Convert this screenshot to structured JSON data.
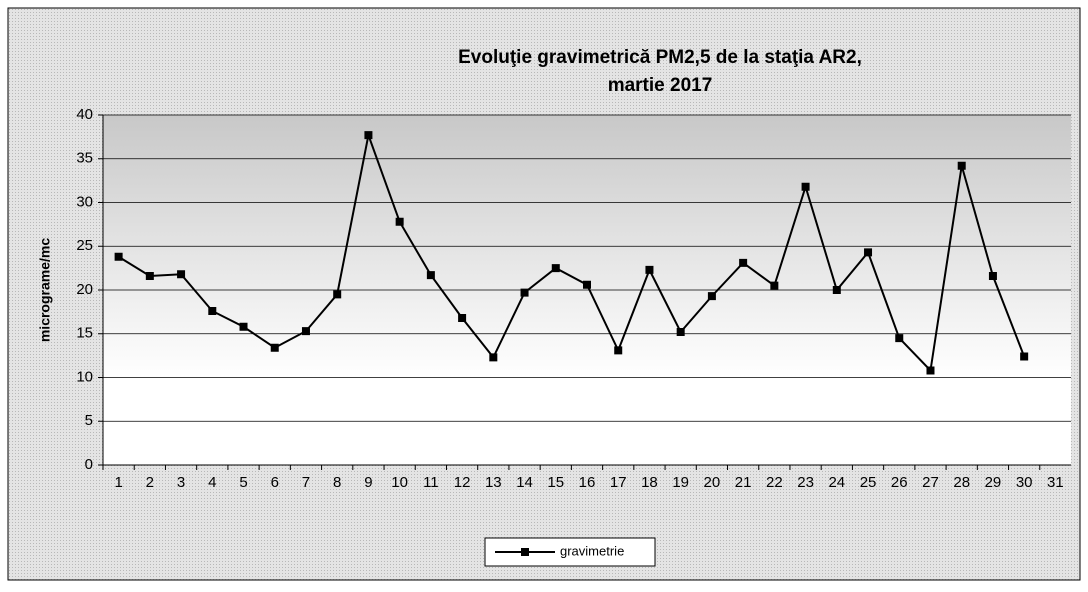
{
  "chart_data": {
    "type": "line",
    "title": "Evoluţie  gravimetrică PM2,5 de la staţia AR2,",
    "subtitle": "martie 2017",
    "y_label": "micrograme/mc",
    "categories": [
      "1",
      "2",
      "3",
      "4",
      "5",
      "6",
      "7",
      "8",
      "9",
      "10",
      "11",
      "12",
      "13",
      "14",
      "15",
      "16",
      "17",
      "18",
      "19",
      "20",
      "21",
      "22",
      "23",
      "24",
      "25",
      "26",
      "27",
      "28",
      "29",
      "30",
      "31"
    ],
    "series": [
      {
        "name": "gravimetrie",
        "color": "#000000",
        "values": [
          23.8,
          21.6,
          21.8,
          17.6,
          15.8,
          13.4,
          15.3,
          19.5,
          37.7,
          27.8,
          21.7,
          16.8,
          12.3,
          19.7,
          22.5,
          20.6,
          13.1,
          22.3,
          15.2,
          19.3,
          23.1,
          20.5,
          31.8,
          20.0,
          24.3,
          14.5,
          10.8,
          34.2,
          21.6,
          12.4,
          null
        ]
      }
    ],
    "ylim": [
      0,
      40
    ],
    "yticks": [
      0,
      5,
      10,
      15,
      20,
      25,
      30,
      35,
      40
    ],
    "grid": true,
    "legend": "bottom"
  }
}
